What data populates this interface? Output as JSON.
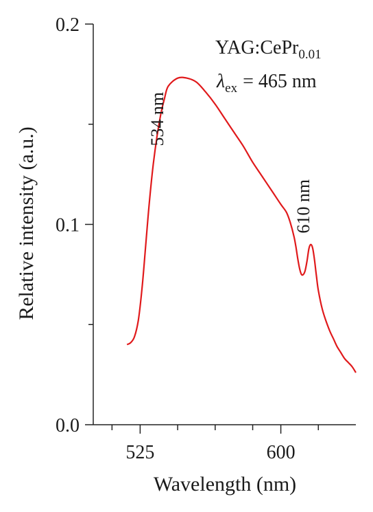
{
  "chart_data": {
    "type": "line",
    "xlabel": "Wavelength (nm)",
    "ylabel": "Relative intensity (a.u.)",
    "xlim": [
      500,
      640
    ],
    "ylim": [
      0.0,
      0.2
    ],
    "x_ticks": [
      525,
      600
    ],
    "x_minor_ticks": [
      510,
      545,
      565,
      585,
      620
    ],
    "y_ticks": [
      "0.0",
      "0.1",
      "0.2"
    ],
    "y_tick_values": [
      0.0,
      0.1,
      0.2
    ],
    "y_minor_ticks": [
      0.05,
      0.15
    ],
    "series": [
      {
        "color": "#e0191b",
        "x": [
          518,
          520,
          522,
          524,
          526,
          528,
          530,
          532,
          534,
          536,
          538,
          540,
          545,
          550,
          555,
          560,
          565,
          570,
          575,
          580,
          585,
          590,
          595,
          600,
          603,
          605,
          607,
          608,
          609,
          610,
          611,
          612,
          613,
          614,
          615,
          616,
          617,
          618,
          619,
          620,
          622,
          624,
          626,
          628,
          630,
          632,
          634,
          636,
          638,
          640
        ],
        "y": [
          0.04,
          0.041,
          0.044,
          0.052,
          0.068,
          0.09,
          0.112,
          0.13,
          0.144,
          0.155,
          0.163,
          0.169,
          0.173,
          0.173,
          0.171,
          0.166,
          0.16,
          0.153,
          0.146,
          0.139,
          0.131,
          0.124,
          0.117,
          0.11,
          0.106,
          0.101,
          0.094,
          0.089,
          0.083,
          0.078,
          0.075,
          0.075,
          0.077,
          0.082,
          0.088,
          0.09,
          0.088,
          0.082,
          0.074,
          0.067,
          0.058,
          0.052,
          0.047,
          0.043,
          0.039,
          0.036,
          0.033,
          0.031,
          0.029,
          0.026
        ]
      }
    ],
    "annotations": [
      {
        "text": "534 nm",
        "x": 534,
        "y": 0.172
      },
      {
        "text": "610 nm",
        "x": 610,
        "y": 0.09
      }
    ],
    "legend": {
      "compound": "YAG:CePr",
      "compound_subscript": "0.01",
      "excitation_symbol": "λ",
      "excitation_subscript": "ex",
      "excitation_value": "= 465 nm",
      "placement": "top-right"
    }
  }
}
